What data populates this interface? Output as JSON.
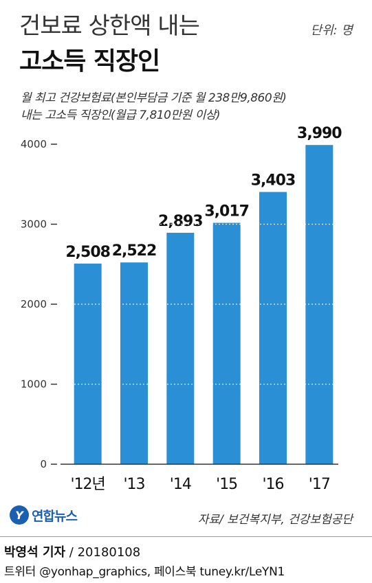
{
  "header": {
    "title_line1": "건보료 상한액 내는",
    "title_line2": "고소득 직장인",
    "unit": "단위: 명",
    "subtitle_line1": "월 최고 건강보험료(본인부담금 기준 월 238만9,860원)",
    "subtitle_line2": "내는 고소득 직장인(월급 7,810만원 이상)"
  },
  "chart_data": {
    "type": "bar",
    "categories": [
      "'12년",
      "'13",
      "'14",
      "'15",
      "'16",
      "'17"
    ],
    "values": [
      2508,
      2522,
      2893,
      3017,
      3403,
      3990
    ],
    "value_labels": [
      "2,508",
      "2,522",
      "2,893",
      "3,017",
      "3,403",
      "3,990"
    ],
    "title": "고소득 직장인",
    "xlabel": "",
    "ylabel": "",
    "ylim": [
      0,
      4000
    ],
    "yticks": [
      0,
      1000,
      2000,
      3000,
      4000
    ],
    "ytick_labels": [
      "0",
      "1000",
      "2000",
      "3000",
      "4000"
    ],
    "grid": true,
    "bar_color": "#2a8fd4"
  },
  "footer": {
    "logo_text": "연합뉴스",
    "logo_mark": "Y",
    "source": "자료/ 보건복지부, 건강보험공단",
    "reporter_name": "박영석 기자",
    "reporter_date": " / 20180108",
    "social": "트위터 @yonhap_graphics, 페이스북 tuney.kr/LeYN1"
  }
}
